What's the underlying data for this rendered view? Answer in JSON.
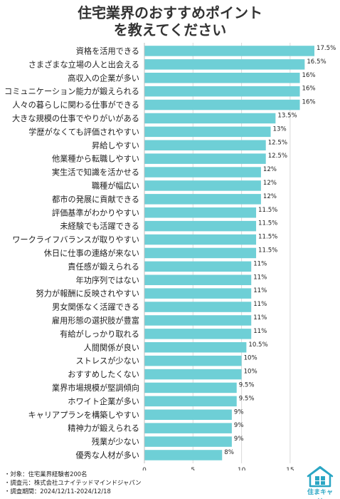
{
  "title": {
    "line1": "住宅業界のおすすめポイント",
    "line2": "を教えてください"
  },
  "chart_data": {
    "type": "bar",
    "orientation": "horizontal",
    "title": "住宅業界のおすすめポイントを教えてください",
    "categories": [
      "資格を活用できる",
      "さまざまな立場の人と出会える",
      "高収入の企業が多い",
      "コミュニケーション能力が鍛えられる",
      "人々の暮らしに関わる仕事ができる",
      "大きな規模の仕事でやりがいがある",
      "学歴がなくても評価されやすい",
      "昇給しやすい",
      "他業種から転職しやすい",
      "実生活で知識を活かせる",
      "職種が幅広い",
      "都市の発展に貢献できる",
      "評価基準がわかりやすい",
      "未経験でも活躍できる",
      "ワークライフバランスが取りやすい",
      "休日に仕事の連絡が来ない",
      "責任感が鍛えられる",
      "年功序列ではない",
      "努力が報酬に反映されやすい",
      "男女関係なく活躍できる",
      "雇用形態の選択肢が豊富",
      "有給がしっかり取れる",
      "人間関係が良い",
      "ストレスが少ない",
      "おすすめしたくない",
      "業界市場規模が堅調傾向",
      "ホワイト企業が多い",
      "キャリアプランを構築しやすい",
      "精神力が鍛えられる",
      "残業が少ない",
      "優秀な人材が多い"
    ],
    "values": [
      17.5,
      16.5,
      16,
      16,
      16,
      13.5,
      13,
      12.5,
      12.5,
      12,
      12,
      12,
      11.5,
      11.5,
      11.5,
      11.5,
      11,
      11,
      11,
      11,
      11,
      11,
      10.5,
      10,
      10,
      9.5,
      9.5,
      9,
      9,
      9,
      8
    ],
    "value_labels": [
      "17.5%",
      "16.5%",
      "16%",
      "16%",
      "16%",
      "13.5%",
      "13%",
      "12.5%",
      "12.5%",
      "12%",
      "12%",
      "12%",
      "11.5%",
      "11.5%",
      "11.5%",
      "11.5%",
      "11%",
      "11%",
      "11%",
      "11%",
      "11%",
      "11%",
      "10.5%",
      "10%",
      "10%",
      "9.5%",
      "9.5%",
      "9%",
      "9%",
      "9%",
      "8%"
    ],
    "xlim": [
      0,
      17.5
    ],
    "xticks": [
      0,
      5,
      10,
      15
    ],
    "xtick_labels": [
      "0",
      "5",
      "10",
      "15"
    ],
    "grid": true,
    "bar_color": "#6ecfd6"
  },
  "notes": [
    "・対象：住宅業界経験者200名",
    "・調査元：株式会社ユナイテッドマインドジャパン",
    "・調査期間：2024/12/11-2024/12/18"
  ],
  "logo": {
    "text": "住まキャリ",
    "color": "#2aa6c4"
  }
}
